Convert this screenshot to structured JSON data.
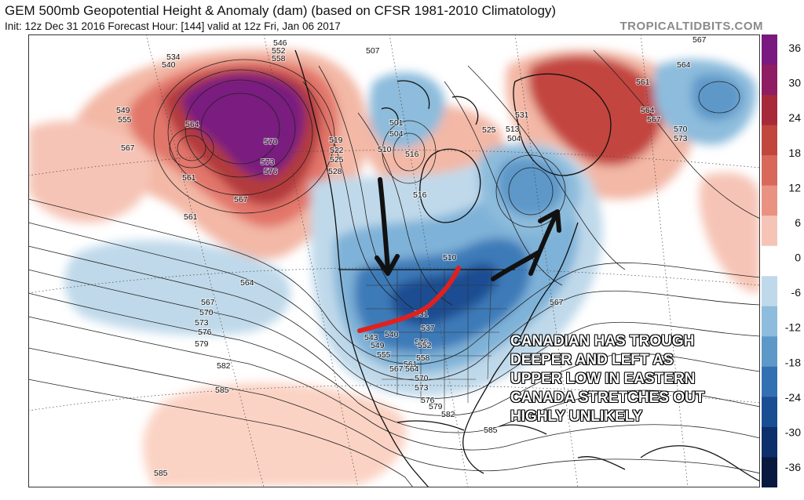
{
  "header": {
    "title": "GEM 500mb Geopotential Height & Anomaly (dam) (based on CFSR 1981-2010 Climatology)",
    "subtitle": "Init: 12z Dec 31 2016   Forecast Hour: [144]   valid at 12z Fri, Jan 06 2017",
    "brand": "TROPICALTIDBITS.COM"
  },
  "colorbar": {
    "ticks": [
      "36",
      "30",
      "24",
      "18",
      "12",
      "6",
      "0",
      "-6",
      "-12",
      "-18",
      "-24",
      "-30",
      "-36"
    ],
    "colors": [
      "#7a1a80",
      "#8e1d63",
      "#a72a3a",
      "#c0463e",
      "#d7685a",
      "#e99282",
      "#f6c4b6",
      "#ffffff",
      "#bfd9ea",
      "#8dbcdc",
      "#5d98c9",
      "#3370b2",
      "#1a4e93",
      "#0d2f6b",
      "#08183f"
    ]
  },
  "map": {
    "contour_labels": [
      {
        "text": "546"
      },
      {
        "text": "552"
      },
      {
        "text": "558"
      },
      {
        "text": "534"
      },
      {
        "text": "540"
      },
      {
        "text": "549"
      },
      {
        "text": "555"
      },
      {
        "text": "564"
      },
      {
        "text": "567"
      },
      {
        "text": "570"
      },
      {
        "text": "573"
      },
      {
        "text": "576"
      },
      {
        "text": "561"
      },
      {
        "text": "567"
      },
      {
        "text": "561"
      },
      {
        "text": "507"
      },
      {
        "text": "510"
      },
      {
        "text": "504"
      },
      {
        "text": "501"
      },
      {
        "text": "516"
      },
      {
        "text": "519"
      },
      {
        "text": "522"
      },
      {
        "text": "525"
      },
      {
        "text": "528"
      },
      {
        "text": "516"
      },
      {
        "text": "513"
      },
      {
        "text": "504"
      },
      {
        "text": "525"
      },
      {
        "text": "531"
      },
      {
        "text": "567"
      },
      {
        "text": "564"
      },
      {
        "text": "561"
      },
      {
        "text": "564"
      },
      {
        "text": "567"
      },
      {
        "text": "570"
      },
      {
        "text": "573"
      },
      {
        "text": "510"
      },
      {
        "text": "564"
      },
      {
        "text": "567"
      },
      {
        "text": "570"
      },
      {
        "text": "573"
      },
      {
        "text": "576"
      },
      {
        "text": "579"
      },
      {
        "text": "582"
      },
      {
        "text": "585"
      },
      {
        "text": "585"
      },
      {
        "text": "543"
      },
      {
        "text": "549"
      },
      {
        "text": "555"
      },
      {
        "text": "540"
      },
      {
        "text": "546"
      },
      {
        "text": "552"
      },
      {
        "text": "558"
      },
      {
        "text": "561"
      },
      {
        "text": "564"
      },
      {
        "text": "567"
      },
      {
        "text": "570"
      },
      {
        "text": "573"
      },
      {
        "text": "576"
      },
      {
        "text": "579"
      },
      {
        "text": "582"
      },
      {
        "text": "585"
      },
      {
        "text": "531"
      },
      {
        "text": "537"
      },
      {
        "text": "567"
      }
    ]
  },
  "annotation": {
    "lines": [
      "CANADIAN HAS TROUGH",
      "DEEPER AND LEFT AS",
      "UPPER LOW IN EASTERN",
      "CANADA STRETCHES OUT",
      "HIGHLY UNLIKELY"
    ]
  }
}
